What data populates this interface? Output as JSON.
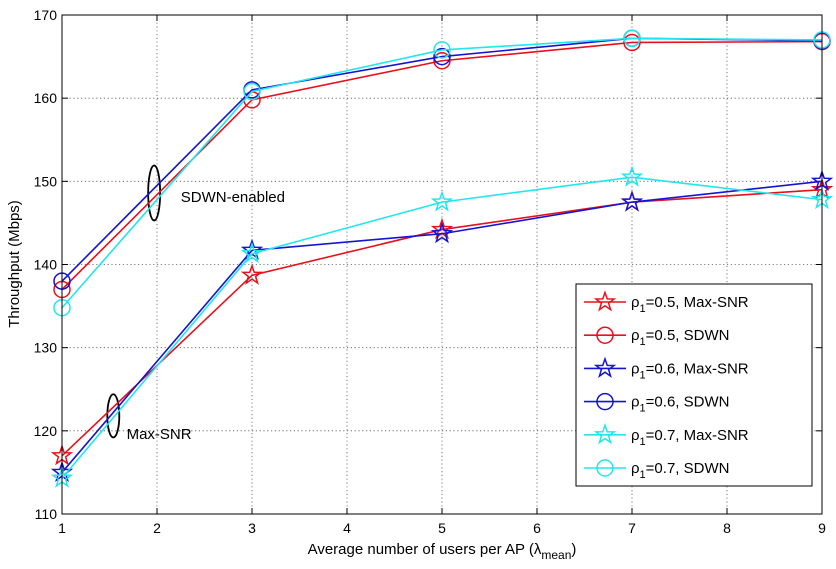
{
  "chart_data": {
    "type": "line",
    "title": "",
    "xlabel": "Average number of users per AP (",
    "xlabel_symbol": "λ",
    "xlabel_subscript": "mean",
    "xlabel_close": ")",
    "ylabel": "Throughput (Mbps)",
    "xlim": [
      1,
      9
    ],
    "ylim": [
      110,
      170
    ],
    "xticks": [
      "1",
      "2",
      "3",
      "4",
      "5",
      "6",
      "7",
      "8",
      "9"
    ],
    "yticks": [
      "110",
      "120",
      "130",
      "140",
      "150",
      "160",
      "170"
    ],
    "grid": true,
    "legend_position": "lower-right",
    "x": [
      1,
      3,
      5,
      7,
      9
    ],
    "series": [
      {
        "name": "ρ1=0.5, Max-SNR",
        "rho": "ρ",
        "sub": "1",
        "rest": "=0.5, Max-SNR",
        "color": "#e8101c",
        "marker": "star",
        "values": [
          117,
          138.7,
          144.2,
          147.5,
          149
        ]
      },
      {
        "name": "ρ1=0.5, SDWN",
        "rho": "ρ",
        "sub": "1",
        "rest": "=0.5, SDWN",
        "color": "#e8101c",
        "marker": "circle",
        "values": [
          137,
          159.8,
          164.5,
          166.7,
          166.8
        ]
      },
      {
        "name": "ρ1=0.6, Max-SNR",
        "rho": "ρ",
        "sub": "1",
        "rest": "=0.6, Max-SNR",
        "color": "#1414d2",
        "marker": "star",
        "values": [
          115,
          141.7,
          143.7,
          147.5,
          150
        ]
      },
      {
        "name": "ρ1=0.6, SDWN",
        "rho": "ρ",
        "sub": "1",
        "rest": "=0.6, SDWN",
        "color": "#1414d2",
        "marker": "circle",
        "values": [
          138,
          161,
          165,
          167.2,
          166.9
        ]
      },
      {
        "name": "ρ1=0.7, Max-SNR",
        "rho": "ρ",
        "sub": "1",
        "rest": "=0.7, Max-SNR",
        "color": "#22e6ee",
        "marker": "star",
        "values": [
          114.3,
          141.3,
          147.5,
          150.5,
          147.8
        ]
      },
      {
        "name": "ρ1=0.7, SDWN",
        "rho": "ρ",
        "sub": "1",
        "rest": "=0.7, SDWN",
        "color": "#22e6ee",
        "marker": "circle",
        "values": [
          134.8,
          160.8,
          165.8,
          167.2,
          167
        ]
      }
    ],
    "annotations": [
      {
        "text": "SDWN-enabled",
        "x": 2.25,
        "y": 147.5,
        "ellipse_x": 1.97,
        "ellipse_y": 148.6,
        "ellipse_dy": 3.3
      },
      {
        "text": "Max-SNR",
        "x": 1.68,
        "y": 119.0,
        "ellipse_x": 1.54,
        "ellipse_y": 121.8,
        "ellipse_dy": 2.6
      }
    ]
  }
}
